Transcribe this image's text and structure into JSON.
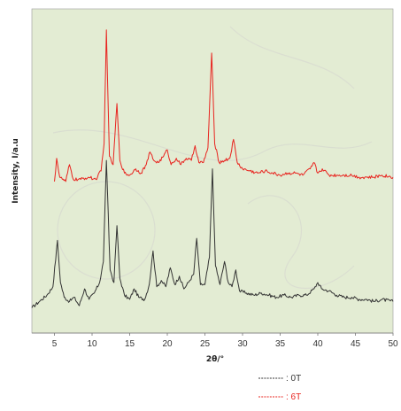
{
  "chart_data": {
    "type": "line",
    "title": "",
    "xlabel": "2θ/°",
    "ylabel": "Intensity, I/a.u",
    "xlim": [
      2,
      50
    ],
    "xticks": [
      5,
      10,
      15,
      20,
      25,
      30,
      35,
      40,
      45,
      50
    ],
    "plot_background": "#e3ecd3",
    "legend_position": "bottom-right",
    "series": [
      {
        "name": ": 0T",
        "color": "#333333",
        "baseline": 1.0,
        "points": [
          [
            2,
            1.0
          ],
          [
            3,
            1.15
          ],
          [
            4,
            1.3
          ],
          [
            4.8,
            1.5
          ],
          [
            5.4,
            2.6
          ],
          [
            5.8,
            1.6
          ],
          [
            6.3,
            1.25
          ],
          [
            7,
            1.15
          ],
          [
            7.6,
            1.25
          ],
          [
            8.3,
            1.05
          ],
          [
            9,
            1.45
          ],
          [
            9.6,
            1.2
          ],
          [
            10.3,
            1.35
          ],
          [
            11,
            1.6
          ],
          [
            11.5,
            2.1
          ],
          [
            11.9,
            4.5
          ],
          [
            12.4,
            1.9
          ],
          [
            12.9,
            1.6
          ],
          [
            13.3,
            2.95
          ],
          [
            13.7,
            1.7
          ],
          [
            14.3,
            1.3
          ],
          [
            15,
            1.2
          ],
          [
            15.6,
            1.45
          ],
          [
            16.2,
            1.25
          ],
          [
            17,
            1.2
          ],
          [
            17.6,
            1.55
          ],
          [
            18.1,
            2.35
          ],
          [
            18.6,
            1.5
          ],
          [
            19.2,
            1.65
          ],
          [
            19.8,
            1.5
          ],
          [
            20.4,
            1.95
          ],
          [
            21,
            1.55
          ],
          [
            21.6,
            1.75
          ],
          [
            22.2,
            1.45
          ],
          [
            22.8,
            1.6
          ],
          [
            23.5,
            1.8
          ],
          [
            23.9,
            2.65
          ],
          [
            24.4,
            1.55
          ],
          [
            25,
            1.55
          ],
          [
            25.6,
            2.2
          ],
          [
            26,
            4.3
          ],
          [
            26.4,
            2.0
          ],
          [
            27,
            1.55
          ],
          [
            27.6,
            2.1
          ],
          [
            28.1,
            1.6
          ],
          [
            28.6,
            1.5
          ],
          [
            29.1,
            1.9
          ],
          [
            29.6,
            1.4
          ],
          [
            30.5,
            1.35
          ],
          [
            31.5,
            1.3
          ],
          [
            32.5,
            1.35
          ],
          [
            33.5,
            1.3
          ],
          [
            34.5,
            1.25
          ],
          [
            35.5,
            1.3
          ],
          [
            36.5,
            1.25
          ],
          [
            37.5,
            1.3
          ],
          [
            38.5,
            1.3
          ],
          [
            39.5,
            1.45
          ],
          [
            40,
            1.6
          ],
          [
            40.5,
            1.45
          ],
          [
            41.5,
            1.4
          ],
          [
            42.5,
            1.3
          ],
          [
            43.5,
            1.25
          ],
          [
            44.5,
            1.25
          ],
          [
            45.5,
            1.2
          ],
          [
            46.5,
            1.2
          ],
          [
            47.5,
            1.15
          ],
          [
            48.5,
            1.2
          ],
          [
            50,
            1.15
          ]
        ]
      },
      {
        "name": ": 6T",
        "color": "#e8231e",
        "baseline": 4.0,
        "points": [
          [
            5,
            4.0
          ],
          [
            5.3,
            4.55
          ],
          [
            5.7,
            4.1
          ],
          [
            6.5,
            4.0
          ],
          [
            7,
            4.4
          ],
          [
            7.5,
            4.05
          ],
          [
            8.5,
            4.05
          ],
          [
            9.5,
            4.1
          ],
          [
            10.5,
            4.05
          ],
          [
            11.2,
            4.25
          ],
          [
            11.6,
            4.9
          ],
          [
            11.9,
            7.6
          ],
          [
            12.3,
            4.6
          ],
          [
            12.8,
            4.4
          ],
          [
            13.3,
            5.85
          ],
          [
            13.7,
            4.5
          ],
          [
            14.3,
            4.2
          ],
          [
            15,
            4.15
          ],
          [
            15.8,
            4.3
          ],
          [
            16.5,
            4.2
          ],
          [
            17.2,
            4.4
          ],
          [
            17.7,
            4.7
          ],
          [
            18.2,
            4.5
          ],
          [
            18.8,
            4.45
          ],
          [
            19.5,
            4.6
          ],
          [
            20,
            4.75
          ],
          [
            20.5,
            4.4
          ],
          [
            21.2,
            4.55
          ],
          [
            21.8,
            4.4
          ],
          [
            22.5,
            4.55
          ],
          [
            23.2,
            4.5
          ],
          [
            23.7,
            4.85
          ],
          [
            24.2,
            4.45
          ],
          [
            24.8,
            4.45
          ],
          [
            25.4,
            4.8
          ],
          [
            25.9,
            7.05
          ],
          [
            26.3,
            4.9
          ],
          [
            26.9,
            4.45
          ],
          [
            27.6,
            4.5
          ],
          [
            28.3,
            4.55
          ],
          [
            28.8,
            5.0
          ],
          [
            29.3,
            4.45
          ],
          [
            30,
            4.3
          ],
          [
            31,
            4.25
          ],
          [
            32,
            4.2
          ],
          [
            33,
            4.25
          ],
          [
            34,
            4.2
          ],
          [
            35,
            4.15
          ],
          [
            36,
            4.2
          ],
          [
            37,
            4.2
          ],
          [
            38,
            4.15
          ],
          [
            39,
            4.3
          ],
          [
            39.5,
            4.45
          ],
          [
            40,
            4.2
          ],
          [
            40.6,
            4.3
          ],
          [
            41.5,
            4.15
          ],
          [
            42.5,
            4.15
          ],
          [
            43.5,
            4.15
          ],
          [
            44.5,
            4.15
          ],
          [
            45.5,
            4.1
          ],
          [
            46.5,
            4.1
          ],
          [
            47.5,
            4.1
          ],
          [
            48.5,
            4.15
          ],
          [
            50,
            4.1
          ]
        ]
      }
    ],
    "ylim": [
      0.4,
      8.1
    ]
  }
}
